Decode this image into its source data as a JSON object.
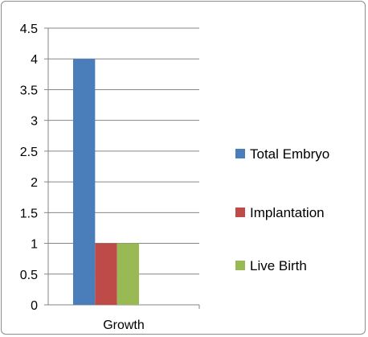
{
  "chart_data": {
    "type": "bar",
    "categories": [
      "Growth"
    ],
    "series": [
      {
        "name": "Total Embryo",
        "values": [
          4
        ],
        "color": "#4a7ebb"
      },
      {
        "name": "Implantation",
        "values": [
          1
        ],
        "color": "#be4b48"
      },
      {
        "name": "Live Birth",
        "values": [
          1
        ],
        "color": "#98b954"
      }
    ],
    "ylim": [
      0,
      4.5
    ],
    "yticks": [
      "0",
      "0.5",
      "1",
      "1.5",
      "2",
      "2.5",
      "3",
      "3.5",
      "4",
      "4.5"
    ],
    "grid": true,
    "legend_position": "right",
    "title": "",
    "xlabel": "",
    "ylabel": ""
  }
}
